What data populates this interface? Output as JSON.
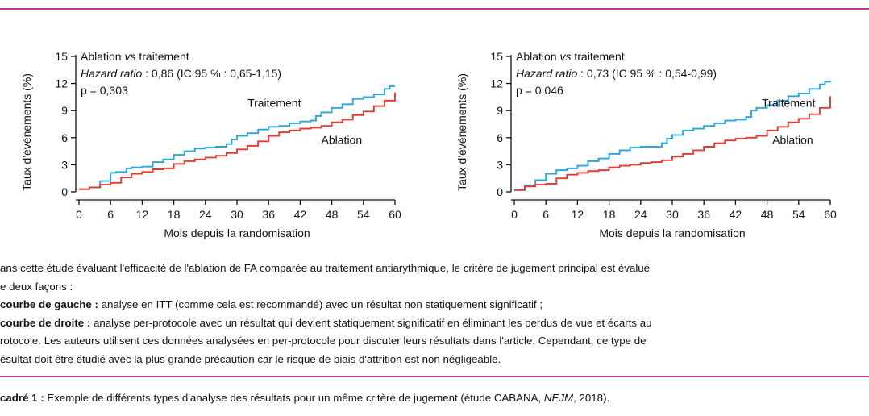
{
  "colors": {
    "rule": "#c0359a",
    "traitement": "#2aa6dd",
    "ablation": "#e63a35",
    "axis": "#111111"
  },
  "chart_data": [
    {
      "type": "line",
      "title": "",
      "xlabel": "Mois depuis la randomisation",
      "ylabel": "Taux d'événements (%)",
      "xlim": [
        0,
        60
      ],
      "ylim": [
        0,
        15
      ],
      "xticks": [
        "0",
        "6",
        "12",
        "18",
        "24",
        "30",
        "36",
        "42",
        "48",
        "54",
        "60"
      ],
      "yticks": [
        "0",
        "3",
        "6",
        "9",
        "12",
        "15"
      ],
      "annotation": {
        "line1_prefix": "Ablation ",
        "line1_italic": "vs",
        "line1_suffix": " traitement",
        "line2_italic": "Hazard ratio",
        "line2_rest": " : 0,86 (IC 95 % : 0,65-1,15)",
        "line3": "p = 0,303"
      },
      "series": [
        {
          "name": "Traitement",
          "label_at": [
            32,
            9.4
          ],
          "x": [
            0,
            2,
            4,
            6,
            7,
            9,
            10,
            12,
            14,
            16,
            18,
            20,
            22,
            24,
            26,
            28,
            29,
            30,
            32,
            34,
            36,
            38,
            40,
            42,
            44,
            45,
            46,
            48,
            50,
            52,
            54,
            56,
            58,
            59,
            60
          ],
          "y": [
            0.3,
            0.5,
            1.2,
            2.1,
            2.2,
            2.6,
            2.7,
            2.8,
            3.3,
            3.6,
            4.1,
            4.5,
            4.8,
            4.9,
            5.0,
            5.3,
            5.8,
            6.2,
            6.5,
            6.9,
            7.2,
            7.3,
            7.6,
            7.8,
            7.9,
            8.4,
            8.8,
            9.3,
            9.7,
            10.3,
            10.5,
            10.8,
            11.4,
            11.7,
            11.7
          ]
        },
        {
          "name": "Ablation",
          "label_at": [
            46,
            5.3
          ],
          "x": [
            0,
            2,
            4,
            6,
            8,
            10,
            12,
            14,
            16,
            18,
            20,
            22,
            24,
            26,
            28,
            30,
            32,
            34,
            36,
            38,
            40,
            42,
            44,
            46,
            48,
            50,
            52,
            54,
            56,
            58,
            60
          ],
          "y": [
            0.3,
            0.5,
            0.8,
            1.0,
            1.6,
            2.0,
            2.2,
            2.5,
            2.6,
            3.1,
            3.4,
            3.6,
            3.8,
            4.0,
            4.3,
            4.7,
            5.1,
            5.6,
            6.2,
            6.6,
            6.8,
            7.0,
            7.1,
            7.3,
            7.7,
            8.0,
            8.5,
            8.9,
            9.5,
            10.1,
            11.0
          ]
        }
      ]
    },
    {
      "type": "line",
      "title": "",
      "xlabel": "Mois depuis la randomisation",
      "ylabel": "Taux d'événements (%)",
      "xlim": [
        0,
        60
      ],
      "ylim": [
        0,
        15
      ],
      "xticks": [
        "0",
        "6",
        "12",
        "18",
        "24",
        "30",
        "36",
        "42",
        "48",
        "54",
        "60"
      ],
      "yticks": [
        "0",
        "3",
        "6",
        "9",
        "12",
        "15"
      ],
      "annotation": {
        "line1_prefix": "Ablation ",
        "line1_italic": "vs",
        "line1_suffix": " traitement",
        "line2_italic": "Hazard ratio",
        "line2_rest": " : 0,73 (IC 95 % : 0,54-0,99)",
        "line3": "p = 0,046"
      },
      "series": [
        {
          "name": "Traitement",
          "label_at": [
            47,
            9.4
          ],
          "x": [
            0,
            2,
            4,
            6,
            8,
            10,
            12,
            14,
            16,
            18,
            20,
            22,
            24,
            26,
            28,
            29,
            30,
            32,
            34,
            36,
            38,
            40,
            42,
            44,
            45,
            46,
            48,
            50,
            52,
            54,
            56,
            58,
            59,
            60
          ],
          "y": [
            0.2,
            0.7,
            1.3,
            2.0,
            2.4,
            2.6,
            2.9,
            3.4,
            3.7,
            4.2,
            4.6,
            4.9,
            5.0,
            5.0,
            5.4,
            5.9,
            6.3,
            6.8,
            7.0,
            7.3,
            7.6,
            7.9,
            8.0,
            8.3,
            9.0,
            9.3,
            9.6,
            10.1,
            10.6,
            10.9,
            11.4,
            11.9,
            12.2,
            12.3
          ]
        },
        {
          "name": "Ablation",
          "label_at": [
            49,
            5.3
          ],
          "x": [
            0,
            2,
            4,
            6,
            8,
            10,
            12,
            14,
            16,
            18,
            20,
            22,
            24,
            26,
            28,
            30,
            32,
            34,
            36,
            38,
            40,
            42,
            44,
            46,
            48,
            50,
            52,
            54,
            56,
            58,
            60
          ],
          "y": [
            0.2,
            0.6,
            0.8,
            0.9,
            1.5,
            1.9,
            2.1,
            2.3,
            2.4,
            2.7,
            2.9,
            3.0,
            3.2,
            3.3,
            3.5,
            3.9,
            4.2,
            4.6,
            5.0,
            5.4,
            5.7,
            5.9,
            6.0,
            6.2,
            6.8,
            7.2,
            7.7,
            8.1,
            8.6,
            9.3,
            10.6
          ]
        }
      ]
    }
  ],
  "caption": {
    "line1": "ans cette étude évaluant l'efficacité de l'ablation de FA comparée au traitement antiarythmique, le critère de jugement principal est évalué",
    "line2": "e deux façons :",
    "line3_bold": " courbe de gauche :",
    "line3_rest": " analyse en ITT (comme cela est recommandé) avec un résultat non statiquement significatif ;",
    "line4_bold": " courbe de droite :",
    "line4_rest": " analyse per-protocole avec un résultat qui devient statiquement significatif en éliminant les perdus de vue et écarts au",
    "line5": "rotocole. Les auteurs utilisent ces données analysées en per-protocole pour discuter leurs résultats dans l'article. Cependant, ce type de",
    "line6": "ésultat doit être étudié avec la plus grande précaution car le risque de biais d'attrition est non négligeable."
  },
  "footer": {
    "bold": "cadré 1 :",
    "text1": " Exemple de différents types d'analyse des résultats pour un même critère de jugement (étude CABANA, ",
    "italic": "NEJM",
    "text2": ", 2018)."
  }
}
